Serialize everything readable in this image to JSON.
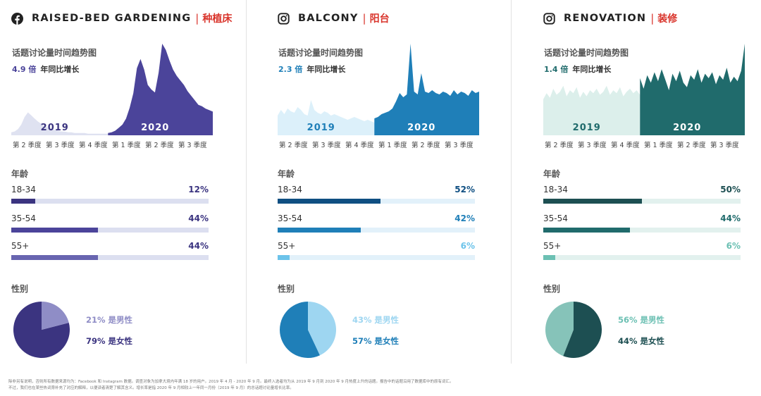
{
  "footnote": {
    "line1": "除非另有说明，否则所有数据来源均为：Facebook 和 Instagram 数据。调查对象为加拿大境内年满 18 岁的用户。2019 年 4 月 - 2020 年 9 月。最终入选者均为从 2019 年 9 月到 2020 年 9 月热度上升的话题。报告中的话题沿用了数据库中的原有词汇。",
    "line2": "不过，我们也在某些热词旁补充了对应的解释，以便读者清楚了解其含义。增长率是指 2020 年 9 月相较上一年同一月份（2019 年 9 月）的总话题讨论量增长比率。"
  },
  "panels": [
    {
      "platform_icon": "facebook-icon",
      "title_en": "RAISED-BED GARDENING",
      "separator": "|",
      "title_zh": "种植床",
      "trend_title": "话题讨论量时间趋势图",
      "growth_value": "4.9 倍",
      "growth_label": "年同比增长",
      "year_2019": "2019",
      "year_2020": "2020",
      "quarters": [
        "第 2 季度",
        "第 3 季度",
        "第 4 季度",
        "第 1 季度",
        "第 2 季度",
        "第 3 季度"
      ],
      "age_title": "年龄",
      "gender_title": "性别",
      "male_text": "21% 是男性",
      "female_text": "79% 是女性",
      "colors": {
        "dark": "#3b3480",
        "light": "#8f8dc6",
        "track": "#dcdff0",
        "y2019": "#dfe2f1",
        "mid": "#4b449a",
        "low": "#6865b0",
        "year2019_text": "#3b3480",
        "year2020_text": "#ffffff"
      }
    },
    {
      "platform_icon": "instagram-icon",
      "title_en": "BALCONY",
      "separator": "|",
      "title_zh": "阳台",
      "trend_title": "话题讨论量时间趋势图",
      "growth_value": "2.3 倍",
      "growth_label": "年同比增长",
      "year_2019": "2019",
      "year_2020": "2020",
      "quarters": [
        "第 2 季度",
        "第 3 季度",
        "第 4 季度",
        "第 1 季度",
        "第 2 季度",
        "第 3 季度"
      ],
      "age_title": "年龄",
      "gender_title": "性别",
      "male_text": "43% 是男性",
      "female_text": "57% 是女性",
      "colors": {
        "dark": "#0f4f82",
        "light": "#9ed6f1",
        "track": "#e2f1fa",
        "y2019": "#dcf0fa",
        "mid": "#1f7fb8",
        "low": "#6cc3ea",
        "year2019_text": "#1f7fb8",
        "year2020_text": "#ffffff"
      }
    },
    {
      "platform_icon": "instagram-icon",
      "title_en": "RENOVATION",
      "separator": "|",
      "title_zh": "装修",
      "trend_title": "话题讨论量时间趋势图",
      "growth_value": "1.4 倍",
      "growth_label": "年同比增长",
      "year_2019": "2019",
      "year_2020": "2020",
      "quarters": [
        "第 2 季度",
        "第 3 季度",
        "第 4 季度",
        "第 1 季度",
        "第 2 季度",
        "第 3 季度"
      ],
      "age_title": "年龄",
      "gender_title": "性别",
      "male_text": "56% 是男性",
      "female_text": "44% 是女性",
      "colors": {
        "dark": "#1d4f52",
        "light": "#86c3b9",
        "track": "#e2f1ee",
        "y2019": "#dcefeb",
        "mid": "#206b6c",
        "low": "#6cc0b3",
        "year2019_text": "#206b6c",
        "year2020_text": "#ffffff"
      }
    }
  ],
  "chart_data": [
    {
      "type": "area",
      "title": "RAISED-BED GARDENING | 种植床 — 话题讨论量时间趋势图",
      "x_label": "quarter (Q2 2019 – Q3 2020)",
      "series": [
        {
          "name": "2019",
          "values": [
            4,
            5,
            8,
            14,
            24,
            30,
            26,
            22,
            18,
            15,
            12,
            10,
            9,
            7,
            6,
            5,
            5,
            4,
            4,
            3,
            3,
            3,
            3,
            2,
            2,
            2,
            2,
            2,
            2,
            2
          ]
        },
        {
          "name": "2020",
          "values": [
            3,
            4,
            6,
            10,
            14,
            22,
            36,
            55,
            88,
            100,
            86,
            66,
            60,
            56,
            82,
            120,
            112,
            98,
            86,
            78,
            72,
            66,
            58,
            52,
            46,
            40,
            38,
            35,
            33,
            31
          ]
        }
      ]
    },
    {
      "type": "bar",
      "title": "RAISED-BED GARDENING | 种植床 — 年龄",
      "categories": [
        "18-34",
        "35-54",
        "55+"
      ],
      "values": [
        12,
        44,
        44
      ],
      "labels": [
        "12%",
        "44%",
        "44%"
      ],
      "xlim": [
        0,
        100
      ]
    },
    {
      "type": "pie",
      "title": "RAISED-BED GARDENING | 种植床 — 性别",
      "categories": [
        "男性",
        "女性"
      ],
      "values": [
        21,
        79
      ]
    },
    {
      "type": "area",
      "title": "BALCONY | 阳台 — 话题讨论量时间趋势图",
      "x_label": "quarter (Q2 2019 – Q3 2020)",
      "series": [
        {
          "name": "2019",
          "values": [
            28,
            36,
            30,
            38,
            34,
            32,
            40,
            36,
            30,
            28,
            50,
            36,
            32,
            30,
            34,
            32,
            28,
            30,
            28,
            26,
            24,
            22,
            24,
            26,
            24,
            22,
            20,
            22,
            20,
            18
          ]
        },
        {
          "name": "2020",
          "values": [
            24,
            26,
            30,
            32,
            34,
            38,
            48,
            60,
            54,
            58,
            130,
            62,
            58,
            88,
            62,
            60,
            64,
            60,
            58,
            62,
            60,
            56,
            64,
            58,
            62,
            60,
            56,
            64,
            60,
            62
          ]
        }
      ]
    },
    {
      "type": "bar",
      "title": "BALCONY | 阳台 — 年龄",
      "categories": [
        "18-34",
        "35-54",
        "55+"
      ],
      "values": [
        52,
        42,
        6
      ],
      "labels": [
        "52%",
        "42%",
        "6%"
      ],
      "xlim": [
        0,
        100
      ]
    },
    {
      "type": "pie",
      "title": "BALCONY | 阳台 — 性别",
      "categories": [
        "男性",
        "女性"
      ],
      "values": [
        43,
        57
      ]
    },
    {
      "type": "area",
      "title": "RENOVATION | 装修 — 话题讨论量时间趋势图",
      "x_label": "quarter (Q2 2019 – Q3 2020)",
      "series": [
        {
          "name": "2019",
          "values": [
            48,
            56,
            50,
            62,
            54,
            58,
            66,
            52,
            60,
            56,
            64,
            50,
            58,
            52,
            60,
            56,
            62,
            54,
            58,
            66,
            54,
            60,
            56,
            64,
            52,
            58,
            62,
            56,
            60,
            54
          ]
        },
        {
          "name": "2020",
          "values": [
            76,
            62,
            80,
            70,
            84,
            72,
            88,
            74,
            60,
            82,
            72,
            86,
            70,
            64,
            80,
            74,
            88,
            70,
            82,
            76,
            84,
            68,
            80,
            74,
            90,
            70,
            78,
            72,
            86,
            122
          ]
        }
      ]
    },
    {
      "type": "bar",
      "title": "RENOVATION | 装修 — 年龄",
      "categories": [
        "18-34",
        "35-54",
        "55+"
      ],
      "values": [
        50,
        44,
        6
      ],
      "labels": [
        "50%",
        "44%",
        "6%"
      ],
      "xlim": [
        0,
        100
      ]
    },
    {
      "type": "pie",
      "title": "RENOVATION | 装修 — 性别",
      "categories": [
        "男性",
        "女性"
      ],
      "values": [
        56,
        44
      ]
    }
  ]
}
